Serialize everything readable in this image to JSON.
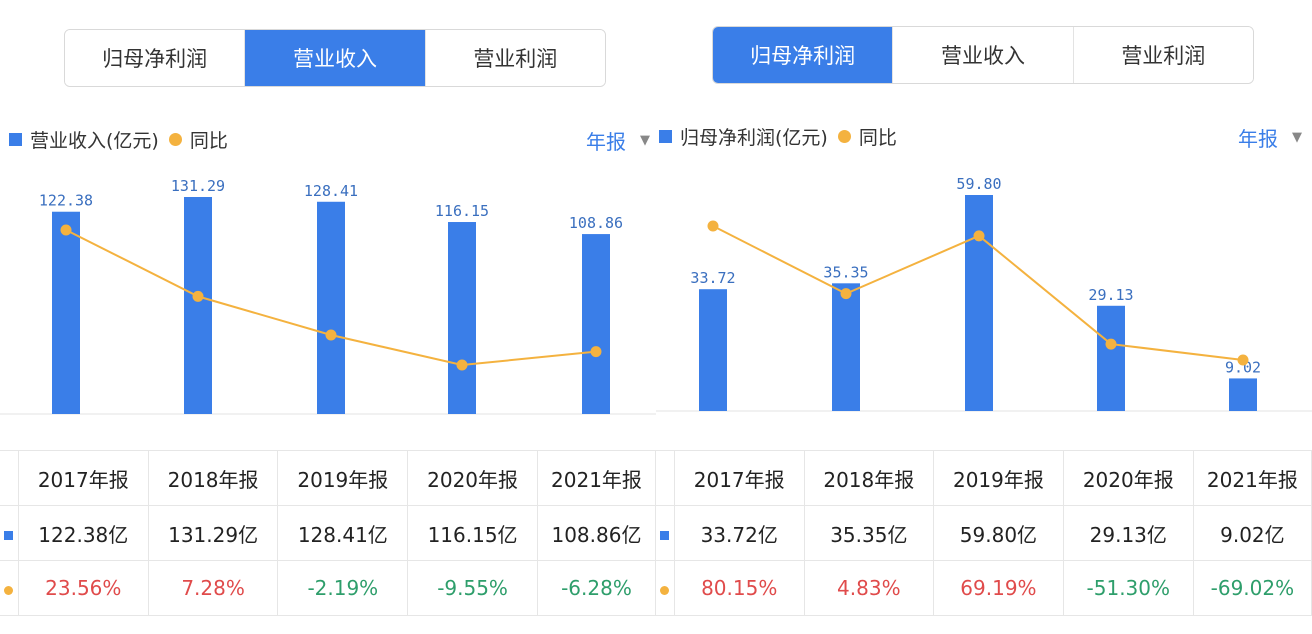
{
  "colors": {
    "accent": "#3a7ee8",
    "line": "#f4b23f",
    "positive": "#e04b4b",
    "negative": "#2e9e6b"
  },
  "left": {
    "tabs": [
      "归母净利润",
      "营业收入",
      "营业利润"
    ],
    "active_tab": 1,
    "legend": {
      "bar": "营业收入(亿元)",
      "line": "同比"
    },
    "period": "年报",
    "table": {
      "headers": [
        "2017年报",
        "2018年报",
        "2019年报",
        "2020年报",
        "2021年报"
      ],
      "values": [
        "122.38亿",
        "131.29亿",
        "128.41亿",
        "116.15亿",
        "108.86亿"
      ],
      "yoy": [
        "23.56%",
        "7.28%",
        "-2.19%",
        "-9.55%",
        "-6.28%"
      ]
    }
  },
  "right": {
    "tabs": [
      "归母净利润",
      "营业收入",
      "营业利润"
    ],
    "active_tab": 0,
    "legend": {
      "bar": "归母净利润(亿元)",
      "line": "同比"
    },
    "period": "年报",
    "table": {
      "headers": [
        "2017年报",
        "2018年报",
        "2019年报",
        "2020年报",
        "2021年报"
      ],
      "values": [
        "33.72亿",
        "35.35亿",
        "59.80亿",
        "29.13亿",
        "9.02亿"
      ],
      "yoy": [
        "80.15%",
        "4.83%",
        "69.19%",
        "-51.30%",
        "-69.02%"
      ]
    }
  },
  "chart_data": [
    {
      "type": "bar",
      "title": "营业收入",
      "categories": [
        "2017年报",
        "2018年报",
        "2019年报",
        "2020年报",
        "2021年报"
      ],
      "series": [
        {
          "name": "营业收入(亿元)",
          "type": "bar",
          "values": [
            122.38,
            131.29,
            128.41,
            116.15,
            108.86
          ],
          "labels": [
            "122.38",
            "131.29",
            "128.41",
            "116.15",
            "108.86"
          ]
        },
        {
          "name": "同比",
          "type": "line",
          "values": [
            23.56,
            7.28,
            -2.19,
            -9.55,
            -6.28
          ]
        }
      ]
    },
    {
      "type": "bar",
      "title": "归母净利润",
      "categories": [
        "2017年报",
        "2018年报",
        "2019年报",
        "2020年报",
        "2021年报"
      ],
      "series": [
        {
          "name": "归母净利润(亿元)",
          "type": "bar",
          "values": [
            33.72,
            35.35,
            59.8,
            29.13,
            9.02
          ],
          "labels": [
            "33.72",
            "35.35",
            "59.80",
            "29.13",
            "9.02"
          ]
        },
        {
          "name": "同比",
          "type": "line",
          "values": [
            80.15,
            4.83,
            69.19,
            -51.3,
            -69.02
          ]
        }
      ]
    }
  ]
}
